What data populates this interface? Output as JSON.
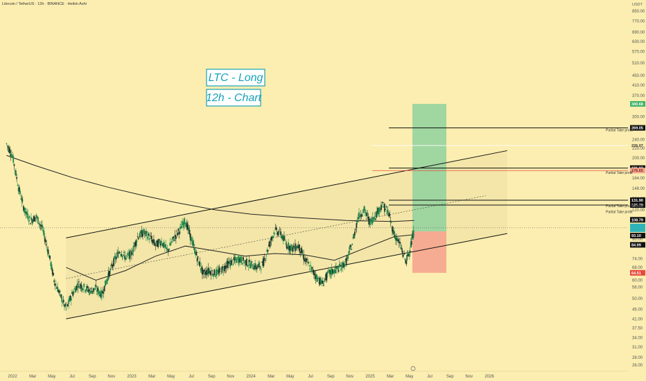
{
  "header": {
    "title": "Litecoin / TetherUS · 12h · BINANCE · Heikin Ashi",
    "currency": "USDT"
  },
  "colors": {
    "background": "#fbeeb0",
    "up_candle": "#1f8a4c",
    "down_candle": "#1e3a2c",
    "channel_line": "#111111",
    "target_zone": "#8fd19e",
    "stop_zone": "#f5a48f",
    "label_text": "#16a3b8",
    "red_line": "#e64a3c"
  },
  "annotations": {
    "title_line1": "LTC - Long",
    "title_line2": "12h - Chart",
    "partial_tp_1": "Partial Take profit",
    "partial_tp_2": "Partial Take profit",
    "partial_tp_3": "Partial Take profit",
    "partial_tp_4": "Partial Take profit"
  },
  "chart_data": {
    "type": "candlestick",
    "title": "LTC - Long",
    "subtitle": "12h - Chart",
    "y_scale": "log",
    "ylim": [
      24,
      900
    ],
    "y_ticks": [
      {
        "label": "850.00",
        "value": 850
      },
      {
        "label": "770.00",
        "value": 770
      },
      {
        "label": "690.00",
        "value": 690
      },
      {
        "label": "630.00",
        "value": 630
      },
      {
        "label": "570.00",
        "value": 570
      },
      {
        "label": "510.00",
        "value": 510
      },
      {
        "label": "450.00",
        "value": 450
      },
      {
        "label": "410.00",
        "value": 410
      },
      {
        "label": "370.00",
        "value": 370
      },
      {
        "label": "300.00",
        "value": 300
      },
      {
        "label": "270.00",
        "value": 270
      },
      {
        "label": "240.00",
        "value": 240
      },
      {
        "label": "220.00",
        "value": 220
      },
      {
        "label": "200.00",
        "value": 200
      },
      {
        "label": "180.00",
        "value": 180
      },
      {
        "label": "164.00",
        "value": 164
      },
      {
        "label": "148.00",
        "value": 148
      },
      {
        "label": "134.00",
        "value": 134
      },
      {
        "label": "120.00",
        "value": 120
      },
      {
        "label": "108.00",
        "value": 108
      },
      {
        "label": "90.00",
        "value": 90
      },
      {
        "label": "74.00",
        "value": 74
      },
      {
        "label": "68.00",
        "value": 68
      },
      {
        "label": "60.00",
        "value": 60
      },
      {
        "label": "56.00",
        "value": 56
      },
      {
        "label": "50.00",
        "value": 50
      },
      {
        "label": "45.00",
        "value": 45
      },
      {
        "label": "41.00",
        "value": 41
      },
      {
        "label": "37.50",
        "value": 37.5
      },
      {
        "label": "34.00",
        "value": 34
      },
      {
        "label": "31.00",
        "value": 31
      },
      {
        "label": "28.00",
        "value": 28
      },
      {
        "label": "26.00",
        "value": 26
      }
    ],
    "x_ticks": [
      "2022",
      "Mar",
      "May",
      "Jul",
      "Sep",
      "Nov",
      "2023",
      "Mar",
      "May",
      "Jul",
      "Sep",
      "Nov",
      "2024",
      "Mar",
      "May",
      "Jul",
      "Sep",
      "Nov",
      "2025",
      "Mar",
      "May",
      "Jul",
      "Sep",
      "Nov",
      "2026"
    ],
    "price_badges": [
      {
        "label": "340.68",
        "value": 340.68,
        "color": "#3fb36a"
      },
      {
        "label": "269.05",
        "value": 269.05,
        "color": "#111111"
      },
      {
        "label": "226.07",
        "value": 226.07,
        "color": "none"
      },
      {
        "label": "181.02",
        "value": 181.02,
        "color": "#111111"
      },
      {
        "label": "176.65",
        "value": 176.65,
        "color": "#f5a48f"
      },
      {
        "label": "131.90",
        "value": 131.9,
        "color": "#111111"
      },
      {
        "label": "125.79",
        "value": 125.79,
        "color": "#111111"
      },
      {
        "label": "124.81",
        "value": 124.81,
        "color": "none"
      },
      {
        "label": "108.79",
        "value": 108.79,
        "color": "#111111"
      },
      {
        "label": "101.34",
        "value": 101.34,
        "color": "#444444"
      },
      {
        "label": "93.10",
        "value": 93.1,
        "color": "#111111"
      },
      {
        "label": "84.99",
        "value": 84.99,
        "color": "#111111"
      },
      {
        "label": "64.51",
        "value": 64.51,
        "color": "#e64a3c"
      }
    ],
    "current_price": 100.5,
    "entry": 97,
    "target": 340.68,
    "stop": 64.51,
    "take_profit_levels": [
      269.05,
      181.02,
      131.9,
      125.79
    ],
    "channel_upper_start": {
      "date": "2022.45",
      "price": 91
    },
    "channel_upper_end": {
      "date": "2026.15",
      "price": 215
    },
    "channel_lower_start": {
      "date": "2022.45",
      "price": 41
    },
    "channel_lower_end": {
      "date": "2026.15",
      "price": 95
    },
    "series": [
      {
        "date": 2021.95,
        "price": 230
      },
      {
        "date": 2022.0,
        "price": 205
      },
      {
        "date": 2022.05,
        "price": 150
      },
      {
        "date": 2022.1,
        "price": 120
      },
      {
        "date": 2022.15,
        "price": 108
      },
      {
        "date": 2022.2,
        "price": 112
      },
      {
        "date": 2022.25,
        "price": 100
      },
      {
        "date": 2022.3,
        "price": 80
      },
      {
        "date": 2022.35,
        "price": 60
      },
      {
        "date": 2022.4,
        "price": 52
      },
      {
        "date": 2022.45,
        "price": 45
      },
      {
        "date": 2022.5,
        "price": 52
      },
      {
        "date": 2022.55,
        "price": 58
      },
      {
        "date": 2022.6,
        "price": 56
      },
      {
        "date": 2022.65,
        "price": 54
      },
      {
        "date": 2022.7,
        "price": 55
      },
      {
        "date": 2022.75,
        "price": 52
      },
      {
        "date": 2022.8,
        "price": 62
      },
      {
        "date": 2022.85,
        "price": 72
      },
      {
        "date": 2022.9,
        "price": 80
      },
      {
        "date": 2022.95,
        "price": 75
      },
      {
        "date": 2023.0,
        "price": 78
      },
      {
        "date": 2023.05,
        "price": 92
      },
      {
        "date": 2023.1,
        "price": 96
      },
      {
        "date": 2023.15,
        "price": 92
      },
      {
        "date": 2023.2,
        "price": 85
      },
      {
        "date": 2023.25,
        "price": 88
      },
      {
        "date": 2023.3,
        "price": 80
      },
      {
        "date": 2023.35,
        "price": 90
      },
      {
        "date": 2023.4,
        "price": 98
      },
      {
        "date": 2023.45,
        "price": 108
      },
      {
        "date": 2023.5,
        "price": 90
      },
      {
        "date": 2023.55,
        "price": 75
      },
      {
        "date": 2023.6,
        "price": 64
      },
      {
        "date": 2023.65,
        "price": 66
      },
      {
        "date": 2023.7,
        "price": 64
      },
      {
        "date": 2023.75,
        "price": 66
      },
      {
        "date": 2023.8,
        "price": 70
      },
      {
        "date": 2023.85,
        "price": 72
      },
      {
        "date": 2023.9,
        "price": 74
      },
      {
        "date": 2023.95,
        "price": 72
      },
      {
        "date": 2024.0,
        "price": 70
      },
      {
        "date": 2024.05,
        "price": 68
      },
      {
        "date": 2024.1,
        "price": 70
      },
      {
        "date": 2024.15,
        "price": 84
      },
      {
        "date": 2024.2,
        "price": 98
      },
      {
        "date": 2024.25,
        "price": 95
      },
      {
        "date": 2024.3,
        "price": 85
      },
      {
        "date": 2024.35,
        "price": 82
      },
      {
        "date": 2024.4,
        "price": 84
      },
      {
        "date": 2024.45,
        "price": 74
      },
      {
        "date": 2024.5,
        "price": 68
      },
      {
        "date": 2024.55,
        "price": 62
      },
      {
        "date": 2024.6,
        "price": 58
      },
      {
        "date": 2024.65,
        "price": 64
      },
      {
        "date": 2024.7,
        "price": 66
      },
      {
        "date": 2024.75,
        "price": 68
      },
      {
        "date": 2024.8,
        "price": 72
      },
      {
        "date": 2024.85,
        "price": 86
      },
      {
        "date": 2024.9,
        "price": 112
      },
      {
        "date": 2024.95,
        "price": 120
      },
      {
        "date": 2025.0,
        "price": 106
      },
      {
        "date": 2025.05,
        "price": 115
      },
      {
        "date": 2025.1,
        "price": 126
      },
      {
        "date": 2025.15,
        "price": 118
      },
      {
        "date": 2025.2,
        "price": 95
      },
      {
        "date": 2025.25,
        "price": 85
      },
      {
        "date": 2025.3,
        "price": 72
      },
      {
        "date": 2025.33,
        "price": 80
      },
      {
        "date": 2025.37,
        "price": 98
      }
    ],
    "ma_long": [
      {
        "date": 2021.95,
        "price": 205
      },
      {
        "date": 2022.2,
        "price": 185
      },
      {
        "date": 2022.5,
        "price": 165
      },
      {
        "date": 2022.8,
        "price": 150
      },
      {
        "date": 2023.1,
        "price": 138
      },
      {
        "date": 2023.4,
        "price": 128
      },
      {
        "date": 2023.7,
        "price": 120
      },
      {
        "date": 2024.0,
        "price": 115
      },
      {
        "date": 2024.4,
        "price": 111
      },
      {
        "date": 2024.8,
        "price": 108
      },
      {
        "date": 2025.2,
        "price": 107
      },
      {
        "date": 2025.37,
        "price": 108
      }
    ],
    "ma_short": [
      {
        "date": 2022.45,
        "price": 68
      },
      {
        "date": 2022.7,
        "price": 60
      },
      {
        "date": 2022.95,
        "price": 66
      },
      {
        "date": 2023.2,
        "price": 76
      },
      {
        "date": 2023.45,
        "price": 84
      },
      {
        "date": 2023.7,
        "price": 80
      },
      {
        "date": 2023.95,
        "price": 76
      },
      {
        "date": 2024.2,
        "price": 78
      },
      {
        "date": 2024.45,
        "price": 77
      },
      {
        "date": 2024.7,
        "price": 73
      },
      {
        "date": 2024.95,
        "price": 82
      },
      {
        "date": 2025.2,
        "price": 92
      },
      {
        "date": 2025.37,
        "price": 94
      }
    ]
  }
}
